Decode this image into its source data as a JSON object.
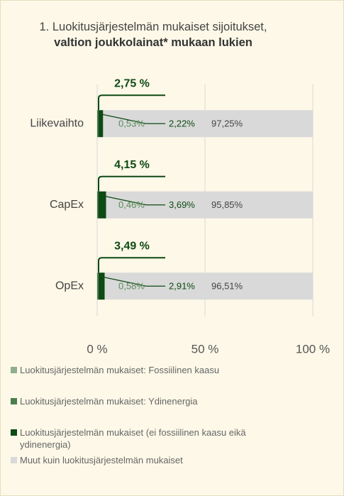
{
  "chart_data": {
    "type": "stacked_barh",
    "title": [
      "1. Luokitusjärjestelmän mukaiset sijoitukset, ",
      "valtion joukkolainat* mukaan lukien"
    ],
    "categories": [
      "Liikevaihto",
      "CapEx",
      "OpEx"
    ],
    "series": [
      {
        "name": "Luokitusjärjestelmän mukaiset: Fossiilinen kaasu",
        "color": "#8fae8f",
        "values": [
          0,
          0,
          0
        ]
      },
      {
        "name": "Luokitusjärjestelmän mukaiset: Ydinenergia",
        "color": "#4d7d4d",
        "values": [
          0.53,
          0.46,
          0.58
        ],
        "value_labels": [
          "0,53%",
          "0,46%",
          "0,58%"
        ]
      },
      {
        "name": "Luokitusjärjestelmän mukaiset (ei fossiilinen kaasu eikä ydinenergia)",
        "color": "#0e4a14",
        "values": [
          2.22,
          3.69,
          2.91
        ],
        "value_labels": [
          "2,22%",
          "3,69%",
          "2,91%"
        ]
      },
      {
        "name": "Muut kuin luokitusjärjestelmän mukaiset",
        "color": "#d9d9d9",
        "values": [
          97.25,
          95.85,
          96.51
        ],
        "value_labels": [
          "97,25%",
          "95,85%",
          "96,51%"
        ]
      }
    ],
    "annotations": [
      {
        "value": 2.75,
        "label": "2,75 %"
      },
      {
        "value": 4.15,
        "label": "4,15 %"
      },
      {
        "value": 3.49,
        "label": "3,49 %"
      }
    ],
    "xlim": [
      0,
      100
    ],
    "xticks": [
      {
        "value": 0,
        "label": "0 %"
      },
      {
        "value": 50,
        "label": "50 %"
      },
      {
        "value": 100,
        "label": "100 %"
      }
    ],
    "grid": true
  }
}
